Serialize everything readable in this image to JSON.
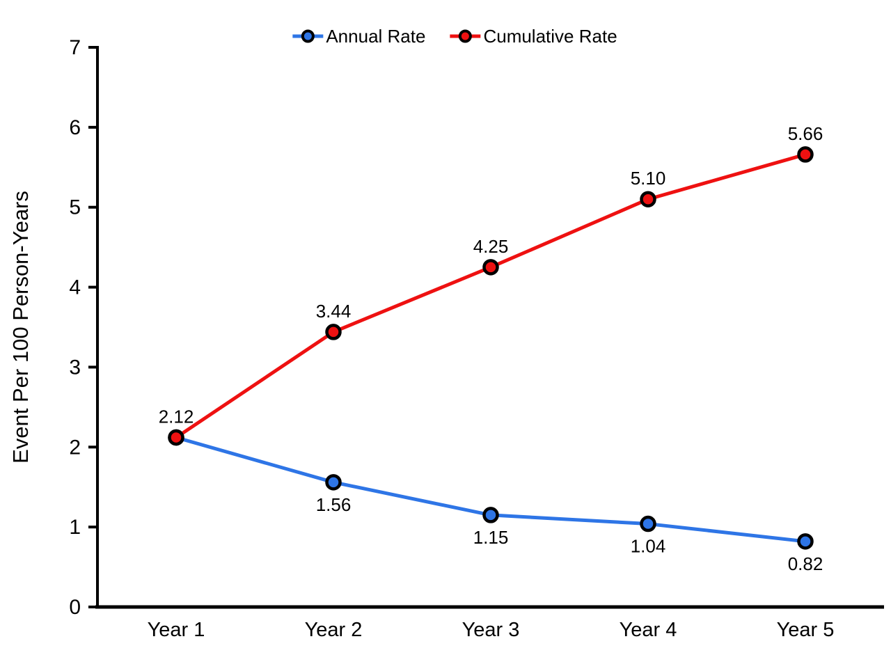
{
  "figure": {
    "background_color": "#ffffff",
    "axis_color": "#000000",
    "text_color": "#000000"
  },
  "chart_data": {
    "type": "line",
    "categories": [
      "Year 1",
      "Year 2",
      "Year 3",
      "Year 4",
      "Year 5"
    ],
    "series": [
      {
        "name": "Annual Rate",
        "color": "#2e75e6",
        "values": [
          2.12,
          1.56,
          1.15,
          1.04,
          0.82
        ],
        "data_labels": [
          "",
          "1.56",
          "1.15",
          "1.04",
          "0.82"
        ],
        "label_position": "below"
      },
      {
        "name": "Cumulative Rate",
        "color": "#ee1111",
        "values": [
          2.12,
          3.44,
          4.25,
          5.1,
          5.66
        ],
        "data_labels": [
          "2.12",
          "3.44",
          "4.25",
          "5.10",
          "5.66"
        ],
        "label_position": "above"
      }
    ],
    "title": "",
    "xlabel": "",
    "ylabel": "Event Per 100 Person-Years",
    "ylim": [
      0,
      7
    ],
    "yticks": [
      0,
      1,
      2,
      3,
      4,
      5,
      6,
      7
    ],
    "grid": false,
    "legend_position": "top-center",
    "marker_style": "circle-black-outline"
  }
}
